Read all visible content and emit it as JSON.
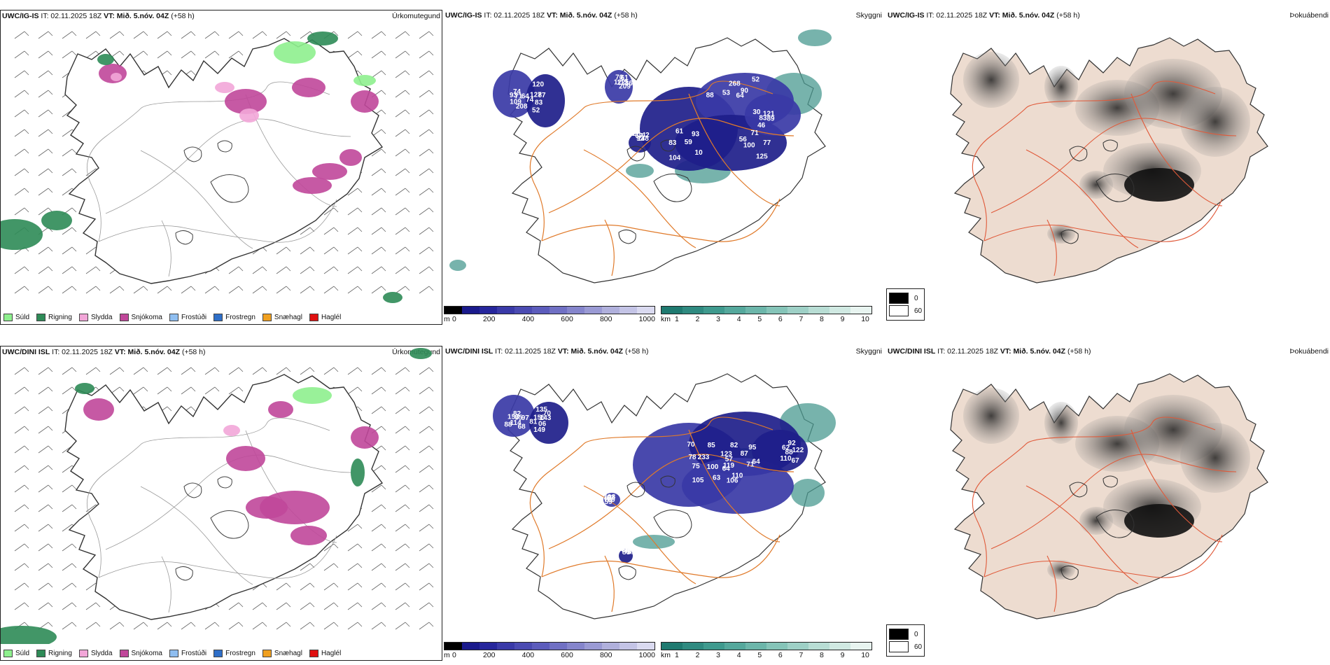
{
  "rows": [
    {
      "precip": {
        "title_model": "UWC/IG-IS",
        "title_it": " IT: 02.11.2025 18Z ",
        "title_vt": "VT: Mið. 5.nóv. 04Z",
        "title_lead": " (+58 h)",
        "title_right": "Úrkomutegund"
      },
      "cloud": {
        "title_model": "UWC/IG-IS",
        "title_it": " IT: 02.11.2025 18Z ",
        "title_vt": "VT: Mið. 5.nóv. 04Z",
        "title_lead": " (+58 h)",
        "title_right": "Skyggni",
        "labels": [
          "74",
          "52",
          "70",
          "93",
          "88",
          "71",
          "89",
          "17",
          "64",
          "83",
          "122",
          "10",
          "53",
          "56",
          "46",
          "67",
          "71",
          "74",
          "61",
          "59",
          "64",
          "77",
          "83",
          "93",
          "208",
          "127",
          "113",
          "104",
          "268",
          "100",
          "121",
          "142",
          "109",
          "87",
          "86",
          "83",
          "90",
          "125",
          "30",
          "148",
          "93",
          "120",
          "209",
          "61",
          "52"
        ]
      },
      "fog": {
        "title_model": "UWC/IG-IS",
        "title_it": " IT: 02.11.2025 18Z ",
        "title_vt": "VT: Mið. 5.nóv. 04Z",
        "title_lead": " (+58 h)",
        "title_right": "Þokuábendi"
      }
    },
    {
      "precip": {
        "title_model": "UWC/DINI ISL",
        "title_it": " IT: 02.11.2025 18Z ",
        "title_vt": "VT: Mið. 5.nóv. 04Z",
        "title_lead": " (+58 h)",
        "title_right": "Úrkomutegund"
      },
      "cloud": {
        "title_model": "UWC/DINI ISL",
        "title_it": " IT: 02.11.2025 18Z ",
        "title_vt": "VT: Mið. 5.nóv. 04Z",
        "title_lead": " (+58 h)",
        "title_right": "Skyggni",
        "labels": [
          "82",
          "149",
          "70",
          "95",
          "105",
          "92",
          "79",
          "64",
          "97",
          "06",
          "78",
          "64",
          "63",
          "62",
          "59",
          "65",
          "55",
          "81",
          "85",
          "87",
          "106",
          "122",
          "81",
          "86",
          "68",
          "155",
          "233",
          "119",
          "64",
          "88",
          "67",
          "77",
          "114",
          "143",
          "57",
          "123",
          "110",
          "67",
          "79",
          "78",
          "153",
          "135",
          "100",
          "82",
          "71",
          "110",
          "108",
          "91",
          "88",
          "70",
          "75"
        ]
      },
      "fog": {
        "title_model": "UWC/DINI ISL",
        "title_it": " IT: 02.11.2025 18Z ",
        "title_vt": "VT: Mið. 5.nóv. 04Z",
        "title_lead": " (+58 h)",
        "title_right": "Þokuábendi"
      }
    }
  ],
  "precip_legend": [
    {
      "label": "Súld",
      "color": "#8ef08e"
    },
    {
      "label": "Rigning",
      "color": "#2e8b57"
    },
    {
      "label": "Slydda",
      "color": "#f2a6d8"
    },
    {
      "label": "Snjókoma",
      "color": "#c0479a"
    },
    {
      "label": "Frostúði",
      "color": "#8fbef0"
    },
    {
      "label": "Frostregn",
      "color": "#2f6fc8"
    },
    {
      "label": "Snæhagl",
      "color": "#f0a020"
    },
    {
      "label": "Haglél",
      "color": "#e01010"
    }
  ],
  "cloud_legend": {
    "unit": "m",
    "ticks": [
      "0",
      "200",
      "400",
      "600",
      "800",
      "1000"
    ],
    "colors": [
      "#000000",
      "#1a1a8c",
      "#26269c",
      "#3a3aa8",
      "#4b4bb2",
      "#5c5cbc",
      "#7070c4",
      "#8585cc",
      "#9a9ad4",
      "#b0b0dc",
      "#c4c4e6",
      "#dadaf0"
    ]
  },
  "vis_legend": {
    "unit": "km",
    "ticks": [
      "1",
      "2",
      "3",
      "4",
      "5",
      "6",
      "7",
      "8",
      "9",
      "10"
    ],
    "colors": [
      "#1f7a70",
      "#2f8a80",
      "#3f9a8e",
      "#55a89c",
      "#6cb6aa",
      "#85c4b8",
      "#9ed0c6",
      "#b8ddd4",
      "#d0e9e2",
      "#e8f4f0"
    ]
  },
  "fog_legend": {
    "items": [
      {
        "label": "0",
        "color": "#000000"
      },
      {
        "label": "60",
        "color": "#ffffff"
      }
    ]
  },
  "colors": {
    "road": "#e07a2a",
    "road_fog": "#e05a3a",
    "coast": "#333333",
    "cloud_dark": "#1e1e8a",
    "cloud_mid": "#3a3aa6",
    "vis_teal": "#4a9a90",
    "fog_land": "#eddcd0"
  }
}
